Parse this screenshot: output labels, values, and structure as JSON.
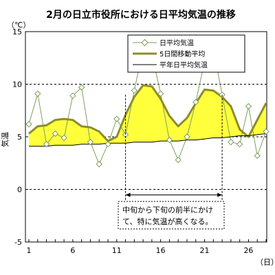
{
  "chart_data": {
    "type": "line",
    "title": "2月の日立市役所における日平均気温の推移",
    "yunit": "（℃）",
    "ylabel": "気温",
    "xunit": "（日）",
    "ylim": [
      -5,
      15
    ],
    "yticks": [
      -5,
      0,
      5,
      10,
      15
    ],
    "xlim": [
      1,
      28
    ],
    "xticks": [
      1,
      6,
      11,
      16,
      21,
      26
    ],
    "grid_dashed_at": [
      0,
      5,
      10
    ],
    "legend_position": "top-right",
    "x": [
      1,
      2,
      3,
      4,
      5,
      6,
      7,
      8,
      9,
      10,
      11,
      12,
      13,
      14,
      15,
      16,
      17,
      18,
      19,
      20,
      21,
      22,
      23,
      24,
      25,
      26,
      27,
      28
    ],
    "series": [
      {
        "name": "日平均気温",
        "color": "#7aa05a",
        "marker": "diamond",
        "values": [
          6.2,
          9.1,
          4.3,
          5.3,
          4.9,
          8.9,
          9.7,
          4.5,
          2.4,
          4.3,
          6.7,
          5.2,
          9.4,
          13.4,
          12.9,
          9.1,
          4.7,
          2.8,
          5.0,
          8.3,
          12.2,
          13.4,
          9.0,
          4.5,
          4.3,
          7.9,
          3.2,
          5.5
        ]
      },
      {
        "name": "5日間移動平均",
        "color": "#8c8c2e",
        "values": [
          5.3,
          6.0,
          6.1,
          6.6,
          6.7,
          6.6,
          6.0,
          5.9,
          5.5,
          4.6,
          5.0,
          7.1,
          8.8,
          9.9,
          9.8,
          8.6,
          7.0,
          6.0,
          6.8,
          8.2,
          9.5,
          9.4,
          8.8,
          7.9,
          5.7,
          5.0,
          6.6,
          8.2
        ]
      },
      {
        "name": "平年日平均気温",
        "color": "#000000",
        "values": [
          4.1,
          4.1,
          4.1,
          4.2,
          4.2,
          4.2,
          4.3,
          4.3,
          4.3,
          4.4,
          4.4,
          4.4,
          4.5,
          4.5,
          4.5,
          4.6,
          4.6,
          4.6,
          4.7,
          4.7,
          4.8,
          4.9,
          4.9,
          5.0,
          5.1,
          5.1,
          5.2,
          5.3
        ]
      }
    ],
    "fill_above_normal_color": "#ffff3c",
    "annotation": {
      "text_line1": "中旬から下旬の前半にかけ",
      "text_line2": "て、特に気温が高くなる。",
      "range_x": [
        12,
        23
      ]
    }
  }
}
